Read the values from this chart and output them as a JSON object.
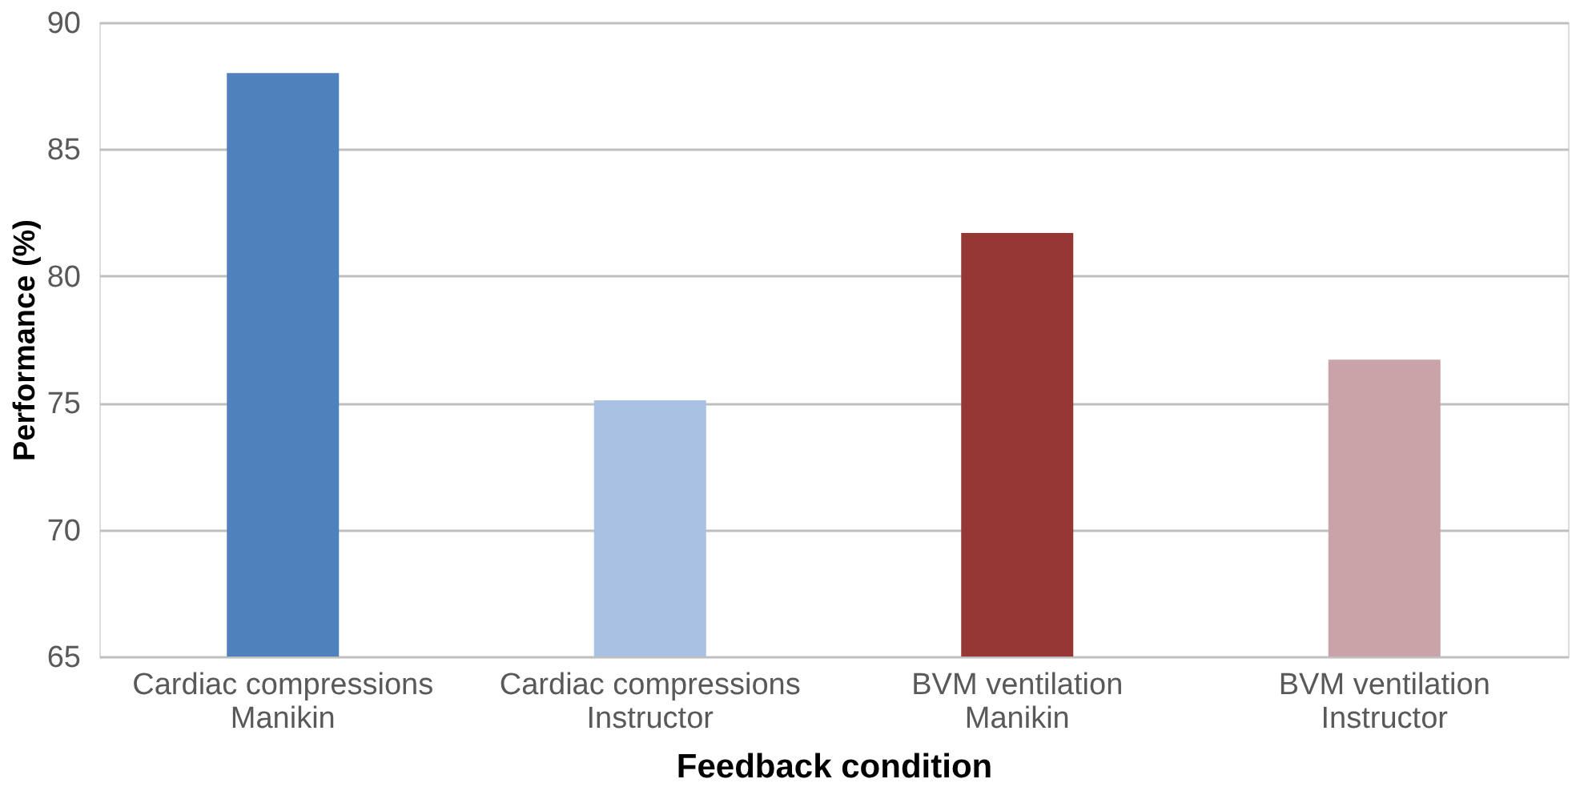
{
  "chart_data": {
    "type": "bar",
    "categories": [
      "Cardiac compressions\nManikin",
      "Cardiac compressions\nInstructor",
      "BVM ventilation\nManikin",
      "BVM ventilation\nInstructor"
    ],
    "values": [
      88.0,
      75.1,
      81.7,
      76.7
    ],
    "colors": [
      "#4f81bd",
      "#a9c1e3",
      "#953735",
      "#c9a3a8"
    ],
    "xlabel": "Feedback condition",
    "ylabel": "Performance (%)",
    "ylim": [
      65,
      90
    ],
    "yticks": [
      65,
      70,
      75,
      80,
      85,
      90
    ],
    "grid": "y",
    "legend": false
  }
}
